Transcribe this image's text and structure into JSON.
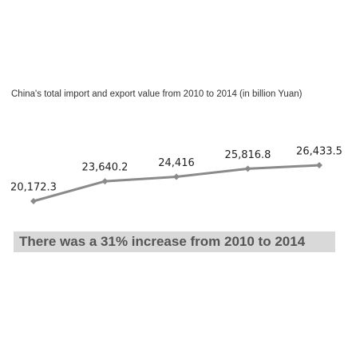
{
  "chart_data": {
    "type": "line",
    "title": "China's total import and export value from 2010 to 2014 (in billion Yuan)",
    "values": [
      20172.3,
      23640.2,
      24416,
      25816.8,
      26433.5
    ],
    "value_labels": [
      "20,172.3",
      "23,640.2",
      "24,416",
      "25,816.8",
      "26,433.5"
    ],
    "color": "#8a8a8a",
    "annotation": "There was a 31% increase from 2010 to 2014"
  }
}
